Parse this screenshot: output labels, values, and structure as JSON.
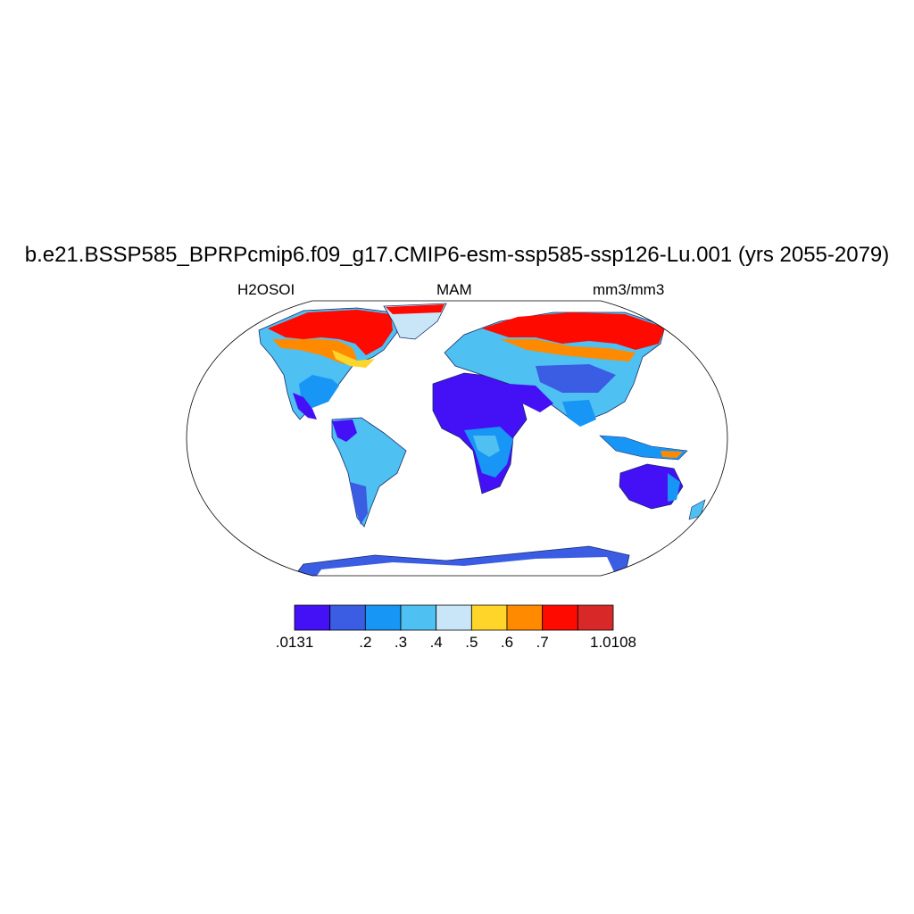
{
  "header": {
    "title": "b.e21.BSSP585_BPRPcmip6.f09_g17.CMIP6-esm-ssp585-ssp126-Lu.001 (yrs 2055-2079)",
    "variable": "H2OSOI",
    "season": "MAM",
    "units": "mm3/mm3"
  },
  "colorbar": {
    "colors": [
      "#4410f5",
      "#3a5de3",
      "#1896f5",
      "#4ec0f2",
      "#c8e6f8",
      "#ffd52a",
      "#ff8a00",
      "#ff0a00",
      "#d82828"
    ],
    "labels": [
      ".0131",
      ".2",
      ".3",
      ".4",
      ".5",
      ".6",
      ".7",
      "1.0108"
    ]
  }
}
